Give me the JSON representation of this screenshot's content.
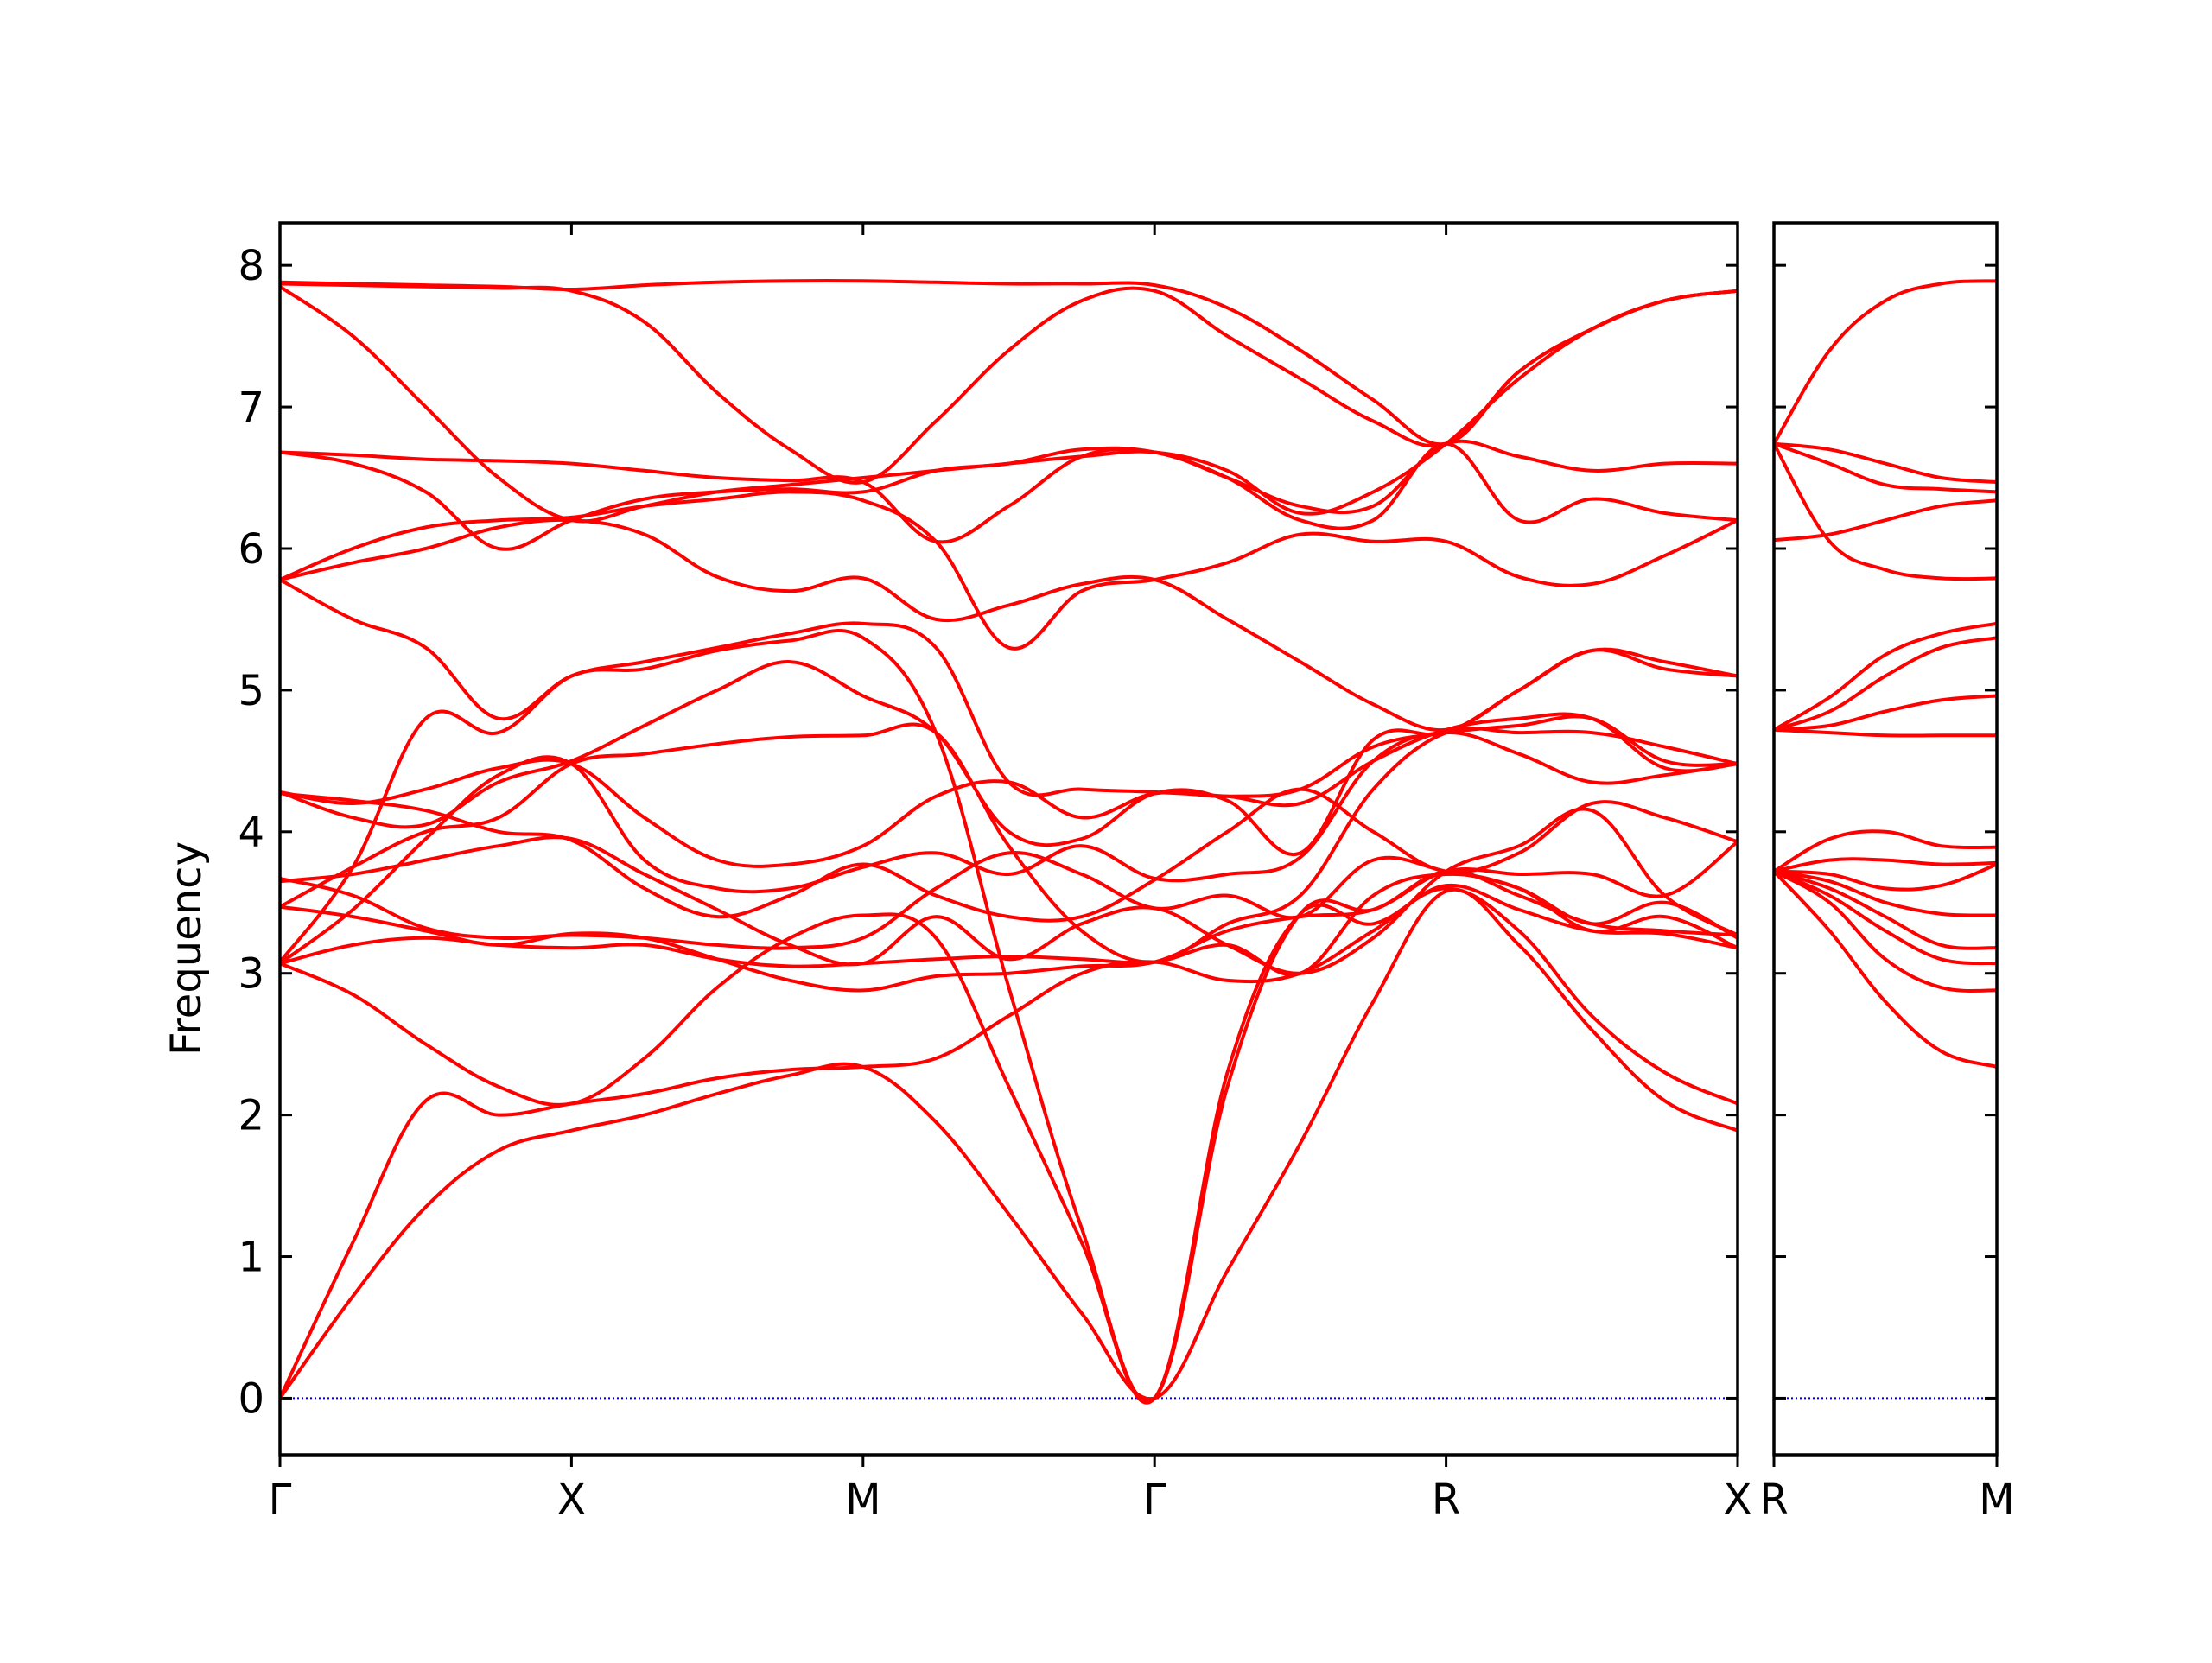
{
  "chart_data": {
    "type": "line",
    "ylabel": "Frequency",
    "xlabel": "",
    "title": "",
    "ylim": [
      -0.4,
      8.3
    ],
    "yticks": [
      0,
      1,
      2,
      3,
      4,
      5,
      6,
      7,
      8
    ],
    "grid": false,
    "line_color": "#ff0000",
    "zero_line_color": "#0000cc",
    "panels": [
      {
        "name": "path-1",
        "xlim": [
          0,
          5
        ],
        "ticks": [
          {
            "pos": 0,
            "label": "Γ"
          },
          {
            "pos": 1,
            "label": "X"
          },
          {
            "pos": 2,
            "label": "M"
          },
          {
            "pos": 3,
            "label": "Γ"
          },
          {
            "pos": 4,
            "label": "R"
          },
          {
            "pos": 5,
            "label": "X"
          }
        ],
        "segment_starts": [
          0,
          1,
          2,
          3,
          4
        ],
        "segment_lengths": [
          1,
          1,
          1.414,
          1.732,
          1
        ],
        "x": [
          0,
          0.25,
          0.5,
          0.75,
          1,
          1.25,
          1.5,
          1.75,
          2,
          2.25,
          2.5,
          2.75,
          3,
          3.25,
          3.5,
          3.75,
          4,
          4.25,
          4.5,
          4.75,
          5
        ],
        "bands": [
          [
            0.0,
            0.72,
            1.35,
            1.75,
            1.89,
            2.0,
            2.15,
            2.28,
            2.34,
            1.95,
            1.3,
            0.6,
            0.0,
            0.9,
            1.8,
            2.8,
            3.58,
            3.2,
            2.6,
            2.1,
            1.89
          ],
          [
            0.0,
            1.1,
            2.1,
            2.0,
            2.08,
            2.15,
            2.26,
            2.32,
            2.34,
            2.4,
            2.7,
            3.0,
            3.08,
            2.95,
            3.0,
            3.3,
            3.6,
            3.3,
            2.7,
            2.3,
            2.08
          ],
          [
            3.07,
            2.85,
            2.5,
            2.2,
            2.08,
            2.4,
            2.9,
            3.25,
            3.41,
            3.25,
            2.2,
            1.1,
            0.0,
            2.3,
            3.42,
            3.35,
            3.62,
            3.45,
            3.3,
            3.28,
            3.18
          ],
          [
            3.08,
            3.75,
            4.8,
            4.7,
            5.1,
            5.15,
            5.28,
            5.35,
            5.37,
            4.7,
            2.9,
            1.2,
            0.0,
            2.2,
            3.42,
            3.45,
            3.72,
            3.55,
            3.35,
            3.3,
            3.27
          ],
          [
            3.07,
            3.2,
            3.25,
            3.2,
            3.18,
            3.2,
            3.1,
            3.05,
            3.07,
            3.1,
            3.12,
            3.1,
            3.08,
            3.2,
            3.0,
            3.55,
            3.7,
            3.6,
            3.35,
            3.5,
            3.25
          ],
          [
            3.47,
            3.4,
            3.3,
            3.2,
            3.28,
            3.25,
            3.1,
            2.95,
            2.88,
            2.98,
            3.0,
            3.05,
            3.08,
            3.3,
            3.4,
            3.45,
            3.72,
            3.7,
            3.7,
            3.55,
            3.93
          ],
          [
            3.47,
            3.75,
            4.0,
            4.1,
            4.48,
            4.55,
            4.62,
            4.67,
            4.68,
            4.7,
            3.9,
            3.3,
            3.08,
            3.35,
            3.55,
            4.3,
            4.7,
            4.7,
            4.7,
            4.6,
            4.48
          ],
          [
            3.65,
            3.7,
            3.8,
            3.9,
            3.95,
            3.7,
            3.45,
            3.2,
            3.07,
            3.4,
            3.1,
            3.35,
            3.46,
            3.2,
            3.0,
            3.25,
            3.72,
            3.9,
            4.15,
            3.55,
            3.27
          ],
          [
            3.67,
            3.55,
            3.32,
            3.25,
            3.27,
            3.25,
            3.2,
            3.18,
            3.25,
            3.6,
            3.85,
            3.7,
            3.46,
            3.55,
            3.4,
            3.8,
            3.72,
            3.6,
            3.3,
            3.4,
            3.18
          ],
          [
            3.07,
            3.45,
            3.95,
            4.4,
            4.48,
            3.8,
            3.6,
            3.6,
            3.75,
            3.85,
            3.7,
            3.9,
            3.67,
            3.7,
            3.82,
            4.5,
            4.7,
            4.55,
            4.35,
            4.4,
            4.48
          ],
          [
            4.27,
            4.22,
            4.15,
            4.0,
            3.94,
            3.6,
            3.4,
            3.55,
            3.77,
            3.55,
            3.4,
            3.4,
            3.66,
            4.0,
            4.3,
            4.0,
            3.72,
            3.85,
            4.2,
            4.1,
            3.93
          ],
          [
            4.28,
            4.2,
            4.3,
            4.45,
            4.48,
            4.1,
            3.8,
            3.77,
            3.9,
            4.25,
            4.35,
            4.1,
            4.27,
            4.25,
            4.3,
            4.6,
            4.7,
            4.75,
            4.8,
            4.5,
            4.48
          ],
          [
            4.28,
            4.1,
            4.05,
            4.35,
            4.5,
            4.75,
            5.0,
            5.2,
            4.96,
            4.7,
            4.0,
            3.95,
            4.27,
            4.22,
            3.85,
            4.65,
            4.7,
            5.0,
            5.28,
            5.15,
            5.1
          ],
          [
            5.78,
            5.5,
            5.3,
            4.8,
            5.1,
            5.2,
            5.3,
            5.4,
            5.47,
            5.3,
            4.35,
            4.3,
            4.28,
            4.25,
            4.2,
            4.5,
            4.72,
            4.8,
            4.8,
            4.45,
            4.48
          ],
          [
            5.78,
            5.9,
            6.0,
            6.15,
            6.2,
            6.1,
            5.8,
            5.7,
            5.79,
            5.5,
            5.6,
            5.75,
            5.78,
            5.5,
            5.2,
            4.9,
            4.72,
            5.0,
            5.28,
            5.2,
            5.1
          ],
          [
            5.78,
            6.0,
            6.15,
            6.2,
            6.22,
            6.3,
            6.35,
            6.4,
            6.34,
            6.05,
            5.3,
            5.7,
            5.78,
            5.9,
            6.1,
            6.05,
            6.05,
            5.8,
            5.75,
            5.95,
            6.2
          ],
          [
            6.68,
            6.6,
            6.4,
            6.0,
            6.2,
            6.35,
            6.4,
            6.42,
            6.4,
            6.55,
            6.6,
            6.7,
            6.68,
            6.5,
            6.2,
            6.2,
            6.74,
            6.2,
            6.35,
            6.25,
            6.2
          ],
          [
            6.68,
            6.66,
            6.63,
            6.62,
            6.6,
            6.55,
            6.5,
            6.48,
            6.47,
            6.05,
            6.3,
            6.65,
            6.68,
            6.5,
            6.3,
            6.3,
            6.74,
            6.65,
            6.55,
            6.6,
            6.6
          ],
          [
            7.85,
            7.5,
            7.0,
            6.5,
            6.2,
            6.3,
            6.4,
            6.45,
            6.5,
            6.55,
            6.6,
            6.65,
            6.68,
            6.55,
            6.25,
            6.4,
            6.74,
            7.2,
            7.55,
            7.75,
            7.82
          ],
          [
            7.87,
            7.86,
            7.85,
            7.84,
            7.82,
            7.6,
            7.1,
            6.7,
            6.47,
            6.9,
            7.4,
            7.75,
            7.82,
            7.5,
            7.2,
            6.9,
            6.74,
            7.25,
            7.55,
            7.75,
            7.82
          ],
          [
            7.88,
            7.87,
            7.86,
            7.85,
            7.83,
            7.86,
            7.88,
            7.89,
            7.89,
            7.88,
            7.87,
            7.87,
            7.86,
            7.7,
            7.4,
            7.05,
            6.74,
            7.25,
            7.55,
            7.75,
            7.82
          ]
        ]
      },
      {
        "name": "path-2",
        "xlim": [
          0,
          1
        ],
        "ticks": [
          {
            "pos": 0,
            "label": "R"
          },
          {
            "pos": 1,
            "label": "M"
          }
        ],
        "segment_starts": [
          0
        ],
        "segment_lengths": [
          1.414
        ],
        "x": [
          0,
          0.25,
          0.5,
          0.75,
          1
        ],
        "bands": [
          [
            3.72,
            3.3,
            2.8,
            2.45,
            2.34
          ],
          [
            3.72,
            3.5,
            3.1,
            2.9,
            2.88
          ],
          [
            3.72,
            3.55,
            3.3,
            3.1,
            3.07
          ],
          [
            3.72,
            3.6,
            3.4,
            3.2,
            3.18
          ],
          [
            3.72,
            3.65,
            3.5,
            3.42,
            3.41
          ],
          [
            3.72,
            3.7,
            3.6,
            3.62,
            3.77
          ],
          [
            3.72,
            3.8,
            3.8,
            3.77,
            3.78
          ],
          [
            3.72,
            3.95,
            4.0,
            3.9,
            3.89
          ],
          [
            4.72,
            4.7,
            4.68,
            4.68,
            4.68
          ],
          [
            4.72,
            4.75,
            4.85,
            4.93,
            4.96
          ],
          [
            4.72,
            4.85,
            5.1,
            5.3,
            5.37
          ],
          [
            4.72,
            4.95,
            5.25,
            5.4,
            5.47
          ],
          [
            6.06,
            6.1,
            6.2,
            6.3,
            6.34
          ],
          [
            6.74,
            6.05,
            5.85,
            5.79,
            5.79
          ],
          [
            6.74,
            6.6,
            6.45,
            6.42,
            6.4
          ],
          [
            6.74,
            6.7,
            6.6,
            6.5,
            6.47
          ],
          [
            6.74,
            7.4,
            7.75,
            7.87,
            7.89
          ]
        ]
      }
    ]
  }
}
